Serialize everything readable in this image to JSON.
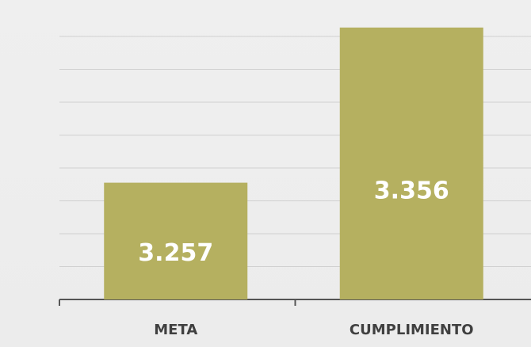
{
  "chart_data": {
    "type": "bar",
    "categories": [
      "META",
      "CUMPLIMIENTO"
    ],
    "values": [
      3.257,
      3.356
    ],
    "value_labels": [
      "3.257",
      "3.356"
    ],
    "ylim": [
      3.1825,
      3.3675
    ],
    "grid": true,
    "bar_color": "#b5b060",
    "title": "",
    "xlabel": "",
    "ylabel": ""
  }
}
